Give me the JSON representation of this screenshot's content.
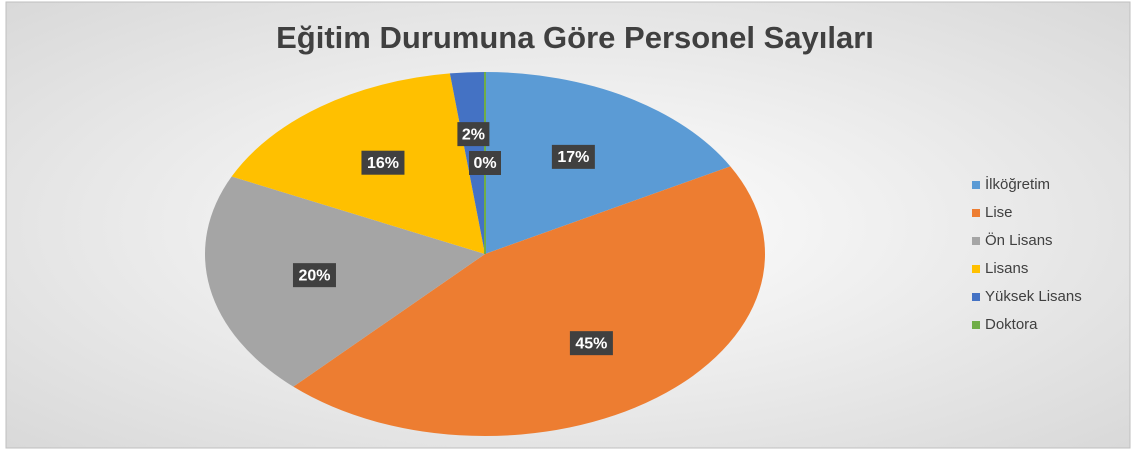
{
  "chart_data": {
    "type": "pie",
    "title": "Eğitim Durumuna Göre Personel Sayıları",
    "categories": [
      "İlköğretim",
      "Lise",
      "Ön Lisans",
      "Lisans",
      "Yüksek Lisans",
      "Doktora"
    ],
    "values": [
      17,
      45,
      20,
      16,
      2,
      0
    ],
    "value_labels": [
      "17%",
      "45%",
      "20%",
      "16%",
      "2%",
      "0%"
    ],
    "colors": [
      "#5b9bd5",
      "#ed7d31",
      "#a5a5a5",
      "#ffc000",
      "#4472c4",
      "#70ad47"
    ],
    "legend": "right"
  }
}
